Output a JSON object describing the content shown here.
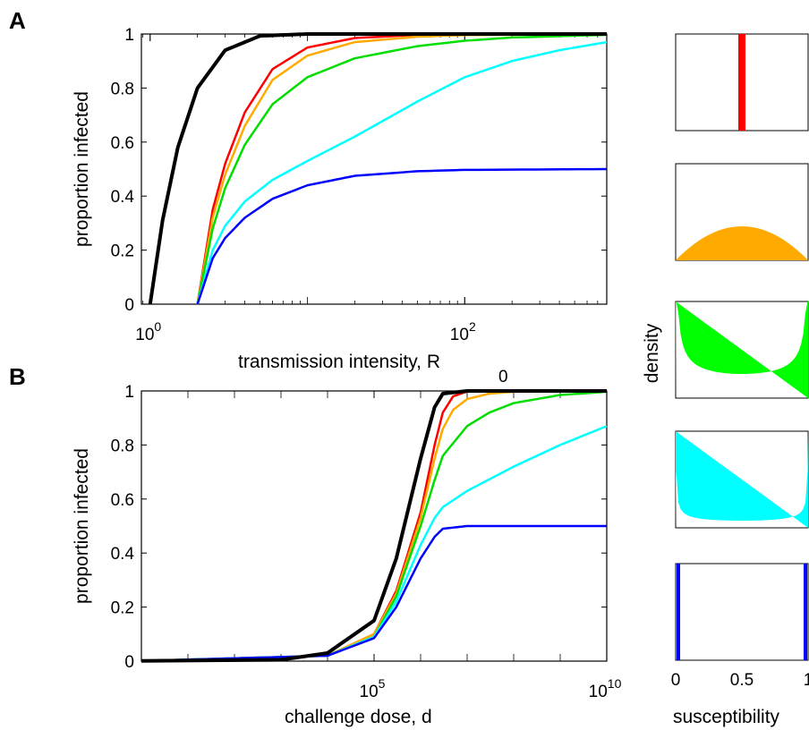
{
  "panels": {
    "A": "A",
    "B": "B"
  },
  "chart_data": [
    {
      "type": "line",
      "panel": "A",
      "xscale": "log",
      "xlabel": "transmission intensity, R",
      "xlabel_sub": "0",
      "ylabel": "proportion infected",
      "xlim": [
        0.88,
        800
      ],
      "ylim": [
        0,
        1
      ],
      "yticks": [
        "0",
        "0.2",
        "0.4",
        "0.6",
        "0.8",
        "1"
      ],
      "xticks": [
        {
          "base": "10",
          "exp": "0",
          "value": 1
        },
        {
          "base": "10",
          "exp": "2",
          "value": 100
        }
      ],
      "series": [
        {
          "color": "#000000",
          "width": 4,
          "points": [
            [
              1,
              0
            ],
            [
              1.2,
              0.31
            ],
            [
              1.5,
              0.58
            ],
            [
              2,
              0.8
            ],
            [
              3,
              0.94
            ],
            [
              5,
              0.993
            ],
            [
              10,
              0.99995
            ],
            [
              100,
              1
            ],
            [
              800,
              1
            ]
          ]
        },
        {
          "color": "#ff0000",
          "width": 2.5,
          "points": [
            [
              2,
              0
            ],
            [
              2.5,
              0.35
            ],
            [
              3,
              0.52
            ],
            [
              4,
              0.71
            ],
            [
              6,
              0.87
            ],
            [
              10,
              0.95
            ],
            [
              20,
              0.985
            ],
            [
              50,
              0.997
            ],
            [
              100,
              0.999
            ],
            [
              800,
              1
            ]
          ]
        },
        {
          "color": "#ffaa00",
          "width": 2.5,
          "points": [
            [
              2,
              0
            ],
            [
              2.5,
              0.32
            ],
            [
              3,
              0.48
            ],
            [
              4,
              0.66
            ],
            [
              6,
              0.83
            ],
            [
              10,
              0.92
            ],
            [
              20,
              0.97
            ],
            [
              50,
              0.99
            ],
            [
              100,
              0.996
            ],
            [
              800,
              1
            ]
          ]
        },
        {
          "color": "#00dd00",
          "width": 2.5,
          "points": [
            [
              2,
              0
            ],
            [
              2.5,
              0.28
            ],
            [
              3,
              0.43
            ],
            [
              4,
              0.59
            ],
            [
              6,
              0.74
            ],
            [
              10,
              0.84
            ],
            [
              20,
              0.91
            ],
            [
              50,
              0.955
            ],
            [
              100,
              0.975
            ],
            [
              200,
              0.987
            ],
            [
              800,
              0.997
            ]
          ]
        },
        {
          "color": "#00ffff",
          "width": 2.5,
          "points": [
            [
              2,
              0
            ],
            [
              2.5,
              0.2
            ],
            [
              3,
              0.29
            ],
            [
              4,
              0.38
            ],
            [
              6,
              0.46
            ],
            [
              10,
              0.53
            ],
            [
              20,
              0.62
            ],
            [
              50,
              0.75
            ],
            [
              100,
              0.84
            ],
            [
              200,
              0.9
            ],
            [
              400,
              0.94
            ],
            [
              800,
              0.97
            ]
          ]
        },
        {
          "color": "#0000ff",
          "width": 2.5,
          "points": [
            [
              2,
              0
            ],
            [
              2.5,
              0.17
            ],
            [
              3,
              0.245
            ],
            [
              4,
              0.32
            ],
            [
              6,
              0.39
            ],
            [
              10,
              0.44
            ],
            [
              20,
              0.475
            ],
            [
              50,
              0.492
            ],
            [
              100,
              0.497
            ],
            [
              800,
              0.5
            ]
          ]
        }
      ]
    },
    {
      "type": "line",
      "panel": "B",
      "xscale": "log",
      "xlabel": "challenge dose, d",
      "ylabel": "proportion infected",
      "xlim": [
        1,
        10000000000.0
      ],
      "ylim": [
        0,
        1
      ],
      "yticks": [
        "0",
        "0.2",
        "0.4",
        "0.6",
        "0.8",
        "1"
      ],
      "xticks": [
        {
          "base": "10",
          "exp": "5",
          "value": 100000
        },
        {
          "base": "10",
          "exp": "10",
          "value": 10000000000
        }
      ],
      "series": [
        {
          "color": "#000000",
          "width": 4,
          "points": [
            [
              1,
              0.001
            ],
            [
              1000.0,
              0.005
            ],
            [
              10000.0,
              0.03
            ],
            [
              100000.0,
              0.15
            ],
            [
              300000.0,
              0.38
            ],
            [
              1000000.0,
              0.75
            ],
            [
              2000000.0,
              0.94
            ],
            [
              3000000.0,
              0.99
            ],
            [
              10000000.0,
              1
            ],
            [
              10000000000.0,
              1
            ]
          ]
        },
        {
          "color": "#ff0000",
          "width": 2.5,
          "points": [
            [
              1,
              0.0008
            ],
            [
              10000.0,
              0.02
            ],
            [
              100000.0,
              0.1
            ],
            [
              300000.0,
              0.26
            ],
            [
              1000000.0,
              0.55
            ],
            [
              2000000.0,
              0.8
            ],
            [
              3000000.0,
              0.92
            ],
            [
              5000000.0,
              0.98
            ],
            [
              10000000.0,
              0.998
            ],
            [
              10000000000.0,
              1
            ]
          ]
        },
        {
          "color": "#ffaa00",
          "width": 2.5,
          "points": [
            [
              1,
              0.0008
            ],
            [
              10000.0,
              0.02
            ],
            [
              100000.0,
              0.1
            ],
            [
              300000.0,
              0.25
            ],
            [
              1000000.0,
              0.53
            ],
            [
              2000000.0,
              0.75
            ],
            [
              3000000.0,
              0.86
            ],
            [
              5000000.0,
              0.93
            ],
            [
              10000000.0,
              0.97
            ],
            [
              30000000.0,
              0.99
            ],
            [
              100000000.0,
              0.997
            ],
            [
              10000000000.0,
              1
            ]
          ]
        },
        {
          "color": "#00dd00",
          "width": 2.5,
          "points": [
            [
              1,
              0.0008
            ],
            [
              10000.0,
              0.02
            ],
            [
              100000.0,
              0.09
            ],
            [
              300000.0,
              0.24
            ],
            [
              1000000.0,
              0.5
            ],
            [
              2000000.0,
              0.67
            ],
            [
              3000000.0,
              0.76
            ],
            [
              10000000.0,
              0.87
            ],
            [
              30000000.0,
              0.92
            ],
            [
              100000000.0,
              0.955
            ],
            [
              1000000000.0,
              0.985
            ],
            [
              10000000000.0,
              0.997
            ]
          ]
        },
        {
          "color": "#00ffff",
          "width": 2.5,
          "points": [
            [
              1,
              0.0008
            ],
            [
              10000.0,
              0.02
            ],
            [
              100000.0,
              0.09
            ],
            [
              300000.0,
              0.22
            ],
            [
              1000000.0,
              0.43
            ],
            [
              2000000.0,
              0.53
            ],
            [
              3000000.0,
              0.57
            ],
            [
              10000000.0,
              0.63
            ],
            [
              100000000.0,
              0.72
            ],
            [
              1000000000.0,
              0.8
            ],
            [
              10000000000.0,
              0.87
            ]
          ]
        },
        {
          "color": "#0000ff",
          "width": 2.5,
          "points": [
            [
              1,
              0.0008
            ],
            [
              10000.0,
              0.02
            ],
            [
              100000.0,
              0.085
            ],
            [
              300000.0,
              0.2
            ],
            [
              1000000.0,
              0.38
            ],
            [
              2000000.0,
              0.46
            ],
            [
              3000000.0,
              0.49
            ],
            [
              10000000.0,
              0.5
            ],
            [
              10000000000.0,
              0.5
            ]
          ]
        }
      ]
    },
    {
      "type": "area",
      "panel": "density",
      "ylabel": "density",
      "xlabel": "susceptibility",
      "xticks": [
        "0",
        "0.5",
        "1"
      ],
      "distributions": [
        {
          "color": "#ff0000",
          "kind": "spike-center"
        },
        {
          "color": "#ffaa00",
          "kind": "parabola"
        },
        {
          "color": "#00ff00",
          "kind": "u-shape-mild"
        },
        {
          "color": "#00ffff",
          "kind": "u-shape-strong"
        },
        {
          "color": "#0000ff",
          "kind": "spikes-ends"
        }
      ]
    }
  ]
}
